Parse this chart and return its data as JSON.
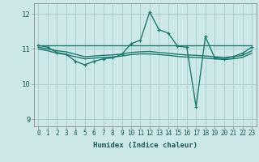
{
  "xlabel": "Humidex (Indice chaleur)",
  "bg_color": "#cce8e8",
  "line_color": "#1a7a6e",
  "grid_color": "#aacece",
  "xlim": [
    -0.5,
    23.5
  ],
  "ylim": [
    8.8,
    12.3
  ],
  "yticks": [
    9,
    10,
    11,
    12
  ],
  "xticks": [
    0,
    1,
    2,
    3,
    4,
    5,
    6,
    7,
    8,
    9,
    10,
    11,
    12,
    13,
    14,
    15,
    16,
    17,
    18,
    19,
    20,
    21,
    22,
    23
  ],
  "series": [
    {
      "x": [
        0,
        1,
        2,
        3,
        4,
        5,
        6,
        7,
        8,
        9,
        10,
        11,
        12,
        13,
        14,
        15,
        16,
        17,
        18,
        19,
        20,
        21,
        22,
        23
      ],
      "y": [
        11.1,
        11.05,
        10.9,
        10.85,
        10.65,
        10.55,
        10.65,
        10.72,
        10.75,
        10.85,
        11.15,
        11.25,
        12.05,
        11.55,
        11.45,
        11.08,
        11.05,
        9.35,
        11.35,
        10.75,
        10.72,
        10.78,
        10.88,
        11.05
      ],
      "has_markers": true
    },
    {
      "x": [
        0,
        1,
        2,
        3,
        4,
        5,
        6,
        7,
        8,
        9,
        10,
        11,
        12,
        13,
        14,
        15,
        16,
        17,
        18,
        19,
        20,
        21,
        22,
        23
      ],
      "y": [
        11.1,
        11.1,
        11.1,
        11.1,
        11.1,
        11.1,
        11.1,
        11.1,
        11.1,
        11.1,
        11.1,
        11.1,
        11.1,
        11.1,
        11.1,
        11.1,
        11.1,
        11.1,
        11.1,
        11.1,
        11.1,
        11.1,
        11.1,
        11.1
      ],
      "has_markers": false
    },
    {
      "x": [
        0,
        1,
        2,
        3,
        4,
        5,
        6,
        7,
        8,
        9,
        10,
        11,
        12,
        13,
        14,
        15,
        16,
        17,
        18,
        19,
        20,
        21,
        22,
        23
      ],
      "y": [
        11.05,
        11.0,
        10.95,
        10.92,
        10.85,
        10.78,
        10.8,
        10.82,
        10.83,
        10.86,
        10.9,
        10.92,
        10.93,
        10.9,
        10.88,
        10.85,
        10.83,
        10.82,
        10.8,
        10.78,
        10.76,
        10.78,
        10.82,
        10.95
      ],
      "has_markers": false
    },
    {
      "x": [
        0,
        1,
        2,
        3,
        4,
        5,
        6,
        7,
        8,
        9,
        10,
        11,
        12,
        13,
        14,
        15,
        16,
        17,
        18,
        19,
        20,
        21,
        22,
        23
      ],
      "y": [
        11.0,
        10.95,
        10.88,
        10.84,
        10.78,
        10.72,
        10.74,
        10.76,
        10.77,
        10.8,
        10.84,
        10.86,
        10.86,
        10.84,
        10.82,
        10.79,
        10.77,
        10.76,
        10.74,
        10.72,
        10.7,
        10.72,
        10.76,
        10.88
      ],
      "has_markers": false
    }
  ]
}
